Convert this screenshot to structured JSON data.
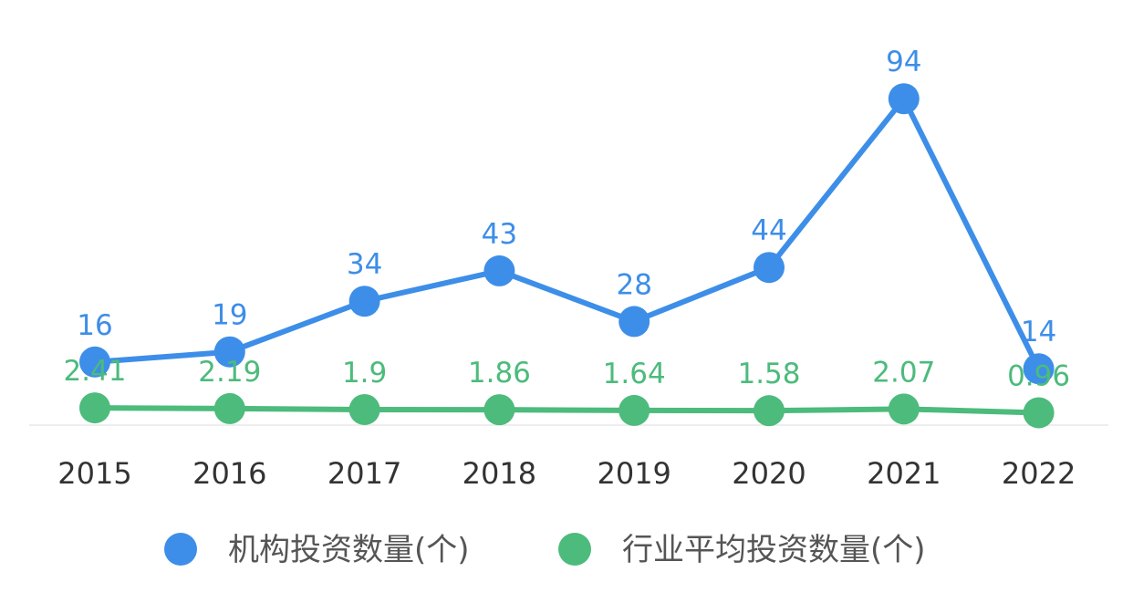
{
  "chart_data": {
    "type": "line",
    "categories": [
      "2015",
      "2016",
      "2017",
      "2018",
      "2019",
      "2020",
      "2021",
      "2022"
    ],
    "series": [
      {
        "name": "机构投资数量(个)",
        "values": [
          16,
          19,
          34,
          43,
          28,
          44,
          94,
          14
        ],
        "labels": [
          "16",
          "19",
          "34",
          "43",
          "28",
          "44",
          "94",
          "14"
        ],
        "color": "#3d8ee8"
      },
      {
        "name": "行业平均投资数量(个)",
        "values": [
          2.41,
          2.19,
          1.9,
          1.86,
          1.64,
          1.58,
          2.07,
          0.96
        ],
        "labels": [
          "2.41",
          "2.19",
          "1.9",
          "1.86",
          "1.64",
          "1.58",
          "2.07",
          "0.96"
        ],
        "color": "#4cbb7c"
      }
    ],
    "ylim": [
      0,
      100
    ],
    "grid": false,
    "legend_position": "bottom"
  }
}
